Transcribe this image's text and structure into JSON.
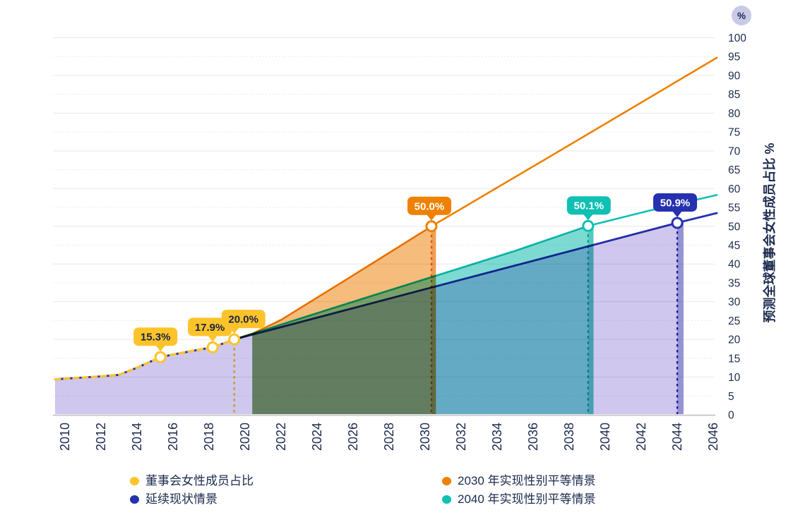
{
  "header": {
    "unit_badge": "%"
  },
  "y_axis": {
    "title": "预测全球董事会女性成员占比 %",
    "unit": "%",
    "min": 0,
    "max": 100,
    "step": 5,
    "tick_labels": [
      "0",
      "5",
      "10",
      "15",
      "20",
      "25",
      "30",
      "35",
      "40",
      "45",
      "50",
      "55",
      "60",
      "65",
      "70",
      "75",
      "80",
      "85",
      "90",
      "95",
      "100"
    ]
  },
  "x_axis": {
    "tick_years": [
      2010,
      2012,
      2014,
      2016,
      2018,
      2020,
      2022,
      2024,
      2026,
      2028,
      2030,
      2032,
      2034,
      2036,
      2038,
      2040,
      2042,
      2044,
      2046
    ]
  },
  "chart_data": {
    "type": "area",
    "title": "",
    "xlabel": "",
    "ylabel": "预测全球董事会女性成员占比 %",
    "ylim": [
      0,
      100
    ],
    "xlim": [
      2009.45,
      2046.2
    ],
    "grid": true,
    "legend_position": "bottom",
    "series": [
      {
        "id": "history",
        "name": "董事会女性成员占比",
        "color": "#FDC32A",
        "line_style": "dashed",
        "blend": "normal",
        "width": 3.2,
        "z": 4,
        "points": [
          [
            2009.45,
            9.4
          ],
          [
            2010,
            9.6
          ],
          [
            2011,
            9.9
          ],
          [
            2012,
            10.2
          ],
          [
            2013,
            10.6
          ],
          [
            2014,
            12.5
          ],
          [
            2015.3,
            15.3
          ],
          [
            2016,
            16.0
          ],
          [
            2017,
            16.9
          ],
          [
            2018.2,
            17.9
          ],
          [
            2019.4,
            20.0
          ]
        ]
      },
      {
        "id": "status-quo",
        "name": "延续现状情景",
        "color": "#2531AF",
        "fill": "#CFC7ED",
        "area_range": [
          2009.45,
          2044.35
        ],
        "edge_band": [
          2044.0,
          2044.35
        ],
        "line_style": "solid",
        "blend": "multiply",
        "width": 2.8,
        "z": 1,
        "points": [
          [
            2009.45,
            9.4
          ],
          [
            2010,
            9.6
          ],
          [
            2011,
            9.9
          ],
          [
            2012,
            10.2
          ],
          [
            2013,
            10.6
          ],
          [
            2014,
            12.5
          ],
          [
            2015.3,
            15.3
          ],
          [
            2016,
            16.0
          ],
          [
            2017,
            16.9
          ],
          [
            2018.2,
            17.9
          ],
          [
            2019.4,
            20.0
          ],
          [
            2044,
            50.9
          ],
          [
            2046.2,
            53.5
          ]
        ]
      },
      {
        "id": "parity-2030",
        "name": "2030 年实现性别平等情景",
        "color": "#EE8100",
        "fill": "#F6BC7C",
        "area_range": [
          2020.4,
          2030.6
        ],
        "edge_band": [
          2030.35,
          2030.6
        ],
        "line_style": "solid",
        "blend": "multiply",
        "width": 2.6,
        "z": 3,
        "points": [
          [
            2019.4,
            20.0
          ],
          [
            2020.4,
            21.5
          ],
          [
            2022,
            25.2
          ],
          [
            2026,
            37.0
          ],
          [
            2030.35,
            50.0
          ],
          [
            2038,
            71.5
          ],
          [
            2046.2,
            94.7
          ]
        ]
      },
      {
        "id": "parity-2040",
        "name": "2040 年实现性别平等情景",
        "color": "#0FC0B3",
        "fill": "#7CDAD3",
        "area_range": [
          2020.4,
          2039.35
        ],
        "edge_band": [
          2039.05,
          2039.35
        ],
        "line_style": "solid",
        "blend": "multiply",
        "width": 2.6,
        "z": 2,
        "points": [
          [
            2019.4,
            20.0
          ],
          [
            2020.4,
            21.5
          ],
          [
            2025,
            28.5
          ],
          [
            2030,
            36.0
          ],
          [
            2035,
            43.5
          ],
          [
            2039.05,
            50.1
          ],
          [
            2042.5,
            54.2
          ],
          [
            2046.2,
            58.3
          ]
        ]
      }
    ],
    "annotations": [
      {
        "label": "15.3%",
        "x": 2015.3,
        "y": 15.3,
        "bg": "#FDC32A",
        "fg": "#1A2444",
        "dx": -7,
        "dropline": false
      },
      {
        "label": "17.9%",
        "x": 2018.2,
        "y": 17.9,
        "bg": "#FDC32A",
        "fg": "#1A2444",
        "dx": -4,
        "dropline": false
      },
      {
        "label": "20.0%",
        "x": 2019.4,
        "y": 20.0,
        "bg": "#FDC32A",
        "fg": "#1A2444",
        "dx": 13,
        "dropline": true
      },
      {
        "label": "50.0%",
        "x": 2030.35,
        "y": 50.0,
        "bg": "#EE8100",
        "fg": "#FFFFFF",
        "dx": -3,
        "dropline": true
      },
      {
        "label": "50.1%",
        "x": 2039.05,
        "y": 50.1,
        "bg": "#0FC0B3",
        "fg": "#FFFFFF",
        "dx": 1,
        "dropline": true
      },
      {
        "label": "50.9%",
        "x": 2044.0,
        "y": 50.9,
        "bg": "#2531AF",
        "fg": "#FFFFFF",
        "dx": -3,
        "dropline": true
      }
    ]
  },
  "legend": {
    "items": [
      {
        "label": "董事会女性成员占比",
        "color": "#FDC32A"
      },
      {
        "label": "延续现状情景",
        "color": "#2531AF"
      },
      {
        "label": "2030 年实现性别平等情景",
        "color": "#EE8100"
      },
      {
        "label": "2040 年实现性别平等情景",
        "color": "#0FC0B3"
      }
    ]
  },
  "colors": {
    "text": "#1C2B4E",
    "grid": "#E8E8E8",
    "axis": "#C6C6C6",
    "unit_badge_bg": "#C9CAE8"
  }
}
